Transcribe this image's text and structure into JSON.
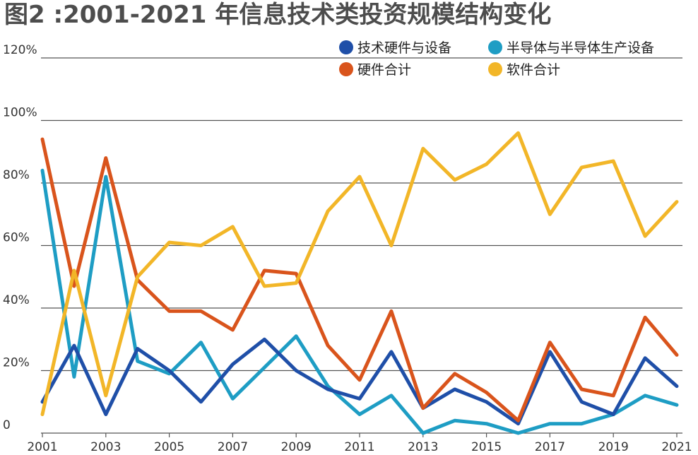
{
  "chart_data": {
    "type": "line",
    "title": "图2 :2001-2021 年信息技术类投资规模结构变化",
    "x": [
      2001,
      2002,
      2003,
      2004,
      2005,
      2006,
      2007,
      2008,
      2009,
      2010,
      2011,
      2012,
      2013,
      2014,
      2015,
      2016,
      2017,
      2018,
      2019,
      2020,
      2021
    ],
    "xticks": [
      "2001",
      "2003",
      "2005",
      "2007",
      "2009",
      "2011",
      "2013",
      "2015",
      "2017",
      "2019",
      "2021"
    ],
    "yticks": [
      "0",
      "20%",
      "40%",
      "60%",
      "80%",
      "100%",
      "120%"
    ],
    "ylim": [
      0,
      120
    ],
    "grid": "horizontal",
    "legend_position": "top-right",
    "series": [
      {
        "name": "技术硬件与设备",
        "color": "#1f4fa8",
        "values": [
          10,
          28,
          6,
          27,
          20,
          10,
          22,
          30,
          20,
          14,
          11,
          26,
          8,
          14,
          10,
          3,
          26,
          10,
          6,
          24,
          15
        ]
      },
      {
        "name": "半导体与半导体生产设备",
        "color": "#1e9dc4",
        "values": [
          84,
          18,
          82,
          23,
          19,
          29,
          11,
          21,
          31,
          15,
          6,
          12,
          0,
          4,
          3,
          0,
          3,
          3,
          6,
          12,
          9
        ]
      },
      {
        "name": "硬件合计",
        "color": "#d9541c",
        "values": [
          94,
          47,
          88,
          49,
          39,
          39,
          33,
          52,
          51,
          28,
          17,
          39,
          8,
          19,
          13,
          4,
          29,
          14,
          12,
          37,
          25
        ]
      },
      {
        "name": "软件合计",
        "color": "#f2b628",
        "values": [
          6,
          52,
          12,
          50,
          61,
          60,
          66,
          47,
          48,
          71,
          82,
          60,
          91,
          81,
          86,
          96,
          70,
          85,
          87,
          63,
          74
        ]
      }
    ]
  }
}
